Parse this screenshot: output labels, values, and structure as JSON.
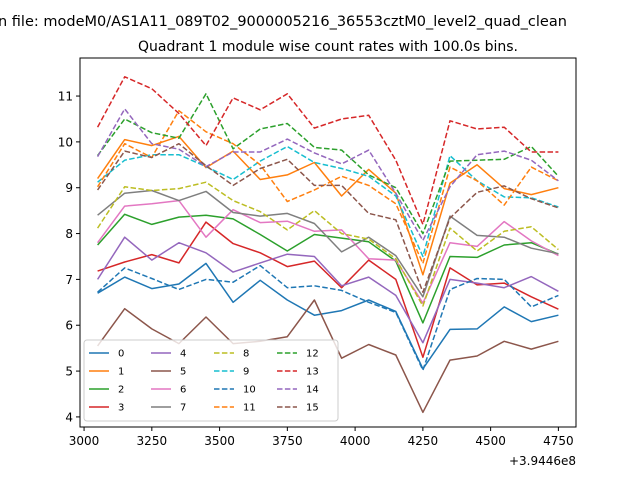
{
  "chart_data": {
    "type": "line",
    "suptitle": "n file: modeM0/AS1A11_089T02_9000005216_36553cztM0_level2_quad_clean",
    "title": "Quadrant 1 module wise count rates with 100.0s bins.",
    "xlabel": "",
    "ylabel": "",
    "x_offset_label": "+3.9446e8",
    "xlim": [
      2985,
      4815
    ],
    "ylim": [
      3.78,
      11.83
    ],
    "x_ticks": [
      3000,
      3250,
      3500,
      3750,
      4000,
      4250,
      4500,
      4750
    ],
    "x_tick_labels": [
      "3000",
      "3250",
      "3500",
      "3750",
      "4000",
      "4250",
      "4500",
      "4750"
    ],
    "y_ticks": [
      4,
      5,
      6,
      7,
      8,
      9,
      10,
      11
    ],
    "y_tick_labels": [
      "4",
      "5",
      "6",
      "7",
      "8",
      "9",
      "10",
      "11"
    ],
    "grid": false,
    "legend_placement": "lower-left",
    "legend_columns": 4,
    "x": [
      3050,
      3150,
      3250,
      3350,
      3450,
      3550,
      3650,
      3750,
      3850,
      3950,
      4050,
      4150,
      4250,
      4350,
      4450,
      4550,
      4650,
      4750
    ],
    "series": [
      {
        "name": "0",
        "color": "#1f77b4",
        "dash": "solid",
        "values": [
          6.7,
          7.05,
          6.8,
          6.9,
          7.35,
          6.5,
          6.98,
          6.55,
          6.22,
          6.32,
          6.55,
          6.3,
          5.05,
          5.91,
          5.92,
          6.4,
          6.08,
          6.22
        ]
      },
      {
        "name": "1",
        "color": "#ff7f0e",
        "dash": "solid",
        "values": [
          9.2,
          10.05,
          9.92,
          10.12,
          9.44,
          9.8,
          9.18,
          9.28,
          9.55,
          8.82,
          9.4,
          8.88,
          7.1,
          9.1,
          9.5,
          8.98,
          8.85,
          9.0
        ]
      },
      {
        "name": "2",
        "color": "#2ca02c",
        "dash": "solid",
        "values": [
          7.75,
          8.42,
          8.2,
          8.36,
          8.4,
          8.32,
          7.98,
          7.62,
          7.98,
          7.9,
          7.82,
          7.4,
          6.05,
          7.5,
          7.48,
          7.75,
          7.8,
          7.55
        ]
      },
      {
        "name": "3",
        "color": "#d62728",
        "dash": "solid",
        "values": [
          7.18,
          7.38,
          7.54,
          7.36,
          8.25,
          7.78,
          7.58,
          7.28,
          7.4,
          6.82,
          7.42,
          7.0,
          5.3,
          7.25,
          6.88,
          6.92,
          6.62,
          6.35
        ]
      },
      {
        "name": "4",
        "color": "#9467bd",
        "dash": "solid",
        "values": [
          7.0,
          7.92,
          7.42,
          7.8,
          7.58,
          7.16,
          7.36,
          7.55,
          7.5,
          6.86,
          7.05,
          6.65,
          5.62,
          7.0,
          6.92,
          6.82,
          7.06,
          6.74
        ]
      },
      {
        "name": "5",
        "color": "#8c564b",
        "dash": "solid",
        "values": [
          5.55,
          6.36,
          5.92,
          5.6,
          6.18,
          5.6,
          5.65,
          5.75,
          6.55,
          5.28,
          5.58,
          5.35,
          4.1,
          5.24,
          5.33,
          5.65,
          5.48,
          5.65
        ]
      },
      {
        "name": "6",
        "color": "#e377c2",
        "dash": "solid",
        "values": [
          7.8,
          8.6,
          8.65,
          8.72,
          7.92,
          8.52,
          8.24,
          8.27,
          8.05,
          8.08,
          7.45,
          7.42,
          6.48,
          7.8,
          7.72,
          8.26,
          7.84,
          7.52
        ]
      },
      {
        "name": "7",
        "color": "#7f7f7f",
        "dash": "solid",
        "values": [
          8.4,
          8.88,
          8.94,
          8.72,
          8.92,
          8.46,
          8.38,
          8.44,
          8.22,
          7.6,
          7.92,
          7.52,
          6.62,
          8.38,
          7.96,
          7.92,
          7.68,
          7.56
        ]
      },
      {
        "name": "8",
        "color": "#bcbd22",
        "dash": "dashed",
        "values": [
          8.12,
          9.02,
          8.94,
          8.98,
          9.12,
          8.72,
          8.48,
          8.08,
          8.5,
          8.0,
          7.88,
          7.45,
          6.42,
          8.12,
          7.62,
          8.05,
          8.15,
          7.65
        ]
      },
      {
        "name": "9",
        "color": "#17becf",
        "dash": "dashed",
        "values": [
          9.12,
          9.6,
          9.72,
          9.72,
          9.46,
          9.18,
          9.58,
          9.9,
          9.55,
          9.42,
          9.25,
          8.82,
          7.5,
          9.7,
          9.15,
          8.8,
          8.78,
          8.58
        ]
      },
      {
        "name": "10",
        "color": "#1f77b4",
        "dash": "dashed",
        "values": [
          6.72,
          7.25,
          7.02,
          6.78,
          7.0,
          6.94,
          7.3,
          6.82,
          6.86,
          6.76,
          6.5,
          6.28,
          5.02,
          6.78,
          7.02,
          7.0,
          6.4,
          6.65
        ]
      },
      {
        "name": "11",
        "color": "#ff7f0e",
        "dash": "dashed",
        "values": [
          9.02,
          9.96,
          9.66,
          10.68,
          10.22,
          9.96,
          9.5,
          8.7,
          8.95,
          9.25,
          9.05,
          8.65,
          7.35,
          9.45,
          9.15,
          8.62,
          9.45,
          9.15
        ]
      },
      {
        "name": "12",
        "color": "#2ca02c",
        "dash": "dashed",
        "values": [
          9.7,
          10.5,
          10.2,
          10.08,
          11.05,
          9.85,
          10.28,
          10.4,
          9.88,
          9.82,
          9.28,
          9.0,
          8.0,
          9.58,
          9.6,
          9.62,
          9.9,
          9.25
        ]
      },
      {
        "name": "13",
        "color": "#d62728",
        "dash": "dashed",
        "values": [
          10.32,
          11.42,
          11.16,
          10.62,
          9.92,
          10.96,
          10.7,
          11.05,
          10.3,
          10.5,
          10.58,
          9.6,
          8.2,
          10.46,
          10.28,
          10.32,
          9.78,
          9.78
        ]
      },
      {
        "name": "14",
        "color": "#9467bd",
        "dash": "dashed",
        "values": [
          9.68,
          10.72,
          9.96,
          9.84,
          9.46,
          9.78,
          9.78,
          10.06,
          9.76,
          9.52,
          9.82,
          8.88,
          7.85,
          9.02,
          9.72,
          9.8,
          9.6,
          9.15
        ]
      },
      {
        "name": "15",
        "color": "#8c564b",
        "dash": "dashed",
        "values": [
          8.95,
          9.8,
          9.66,
          9.96,
          9.48,
          9.05,
          9.42,
          9.62,
          9.05,
          9.05,
          8.44,
          8.3,
          6.72,
          8.34,
          8.9,
          9.04,
          8.76,
          8.56
        ]
      }
    ]
  }
}
